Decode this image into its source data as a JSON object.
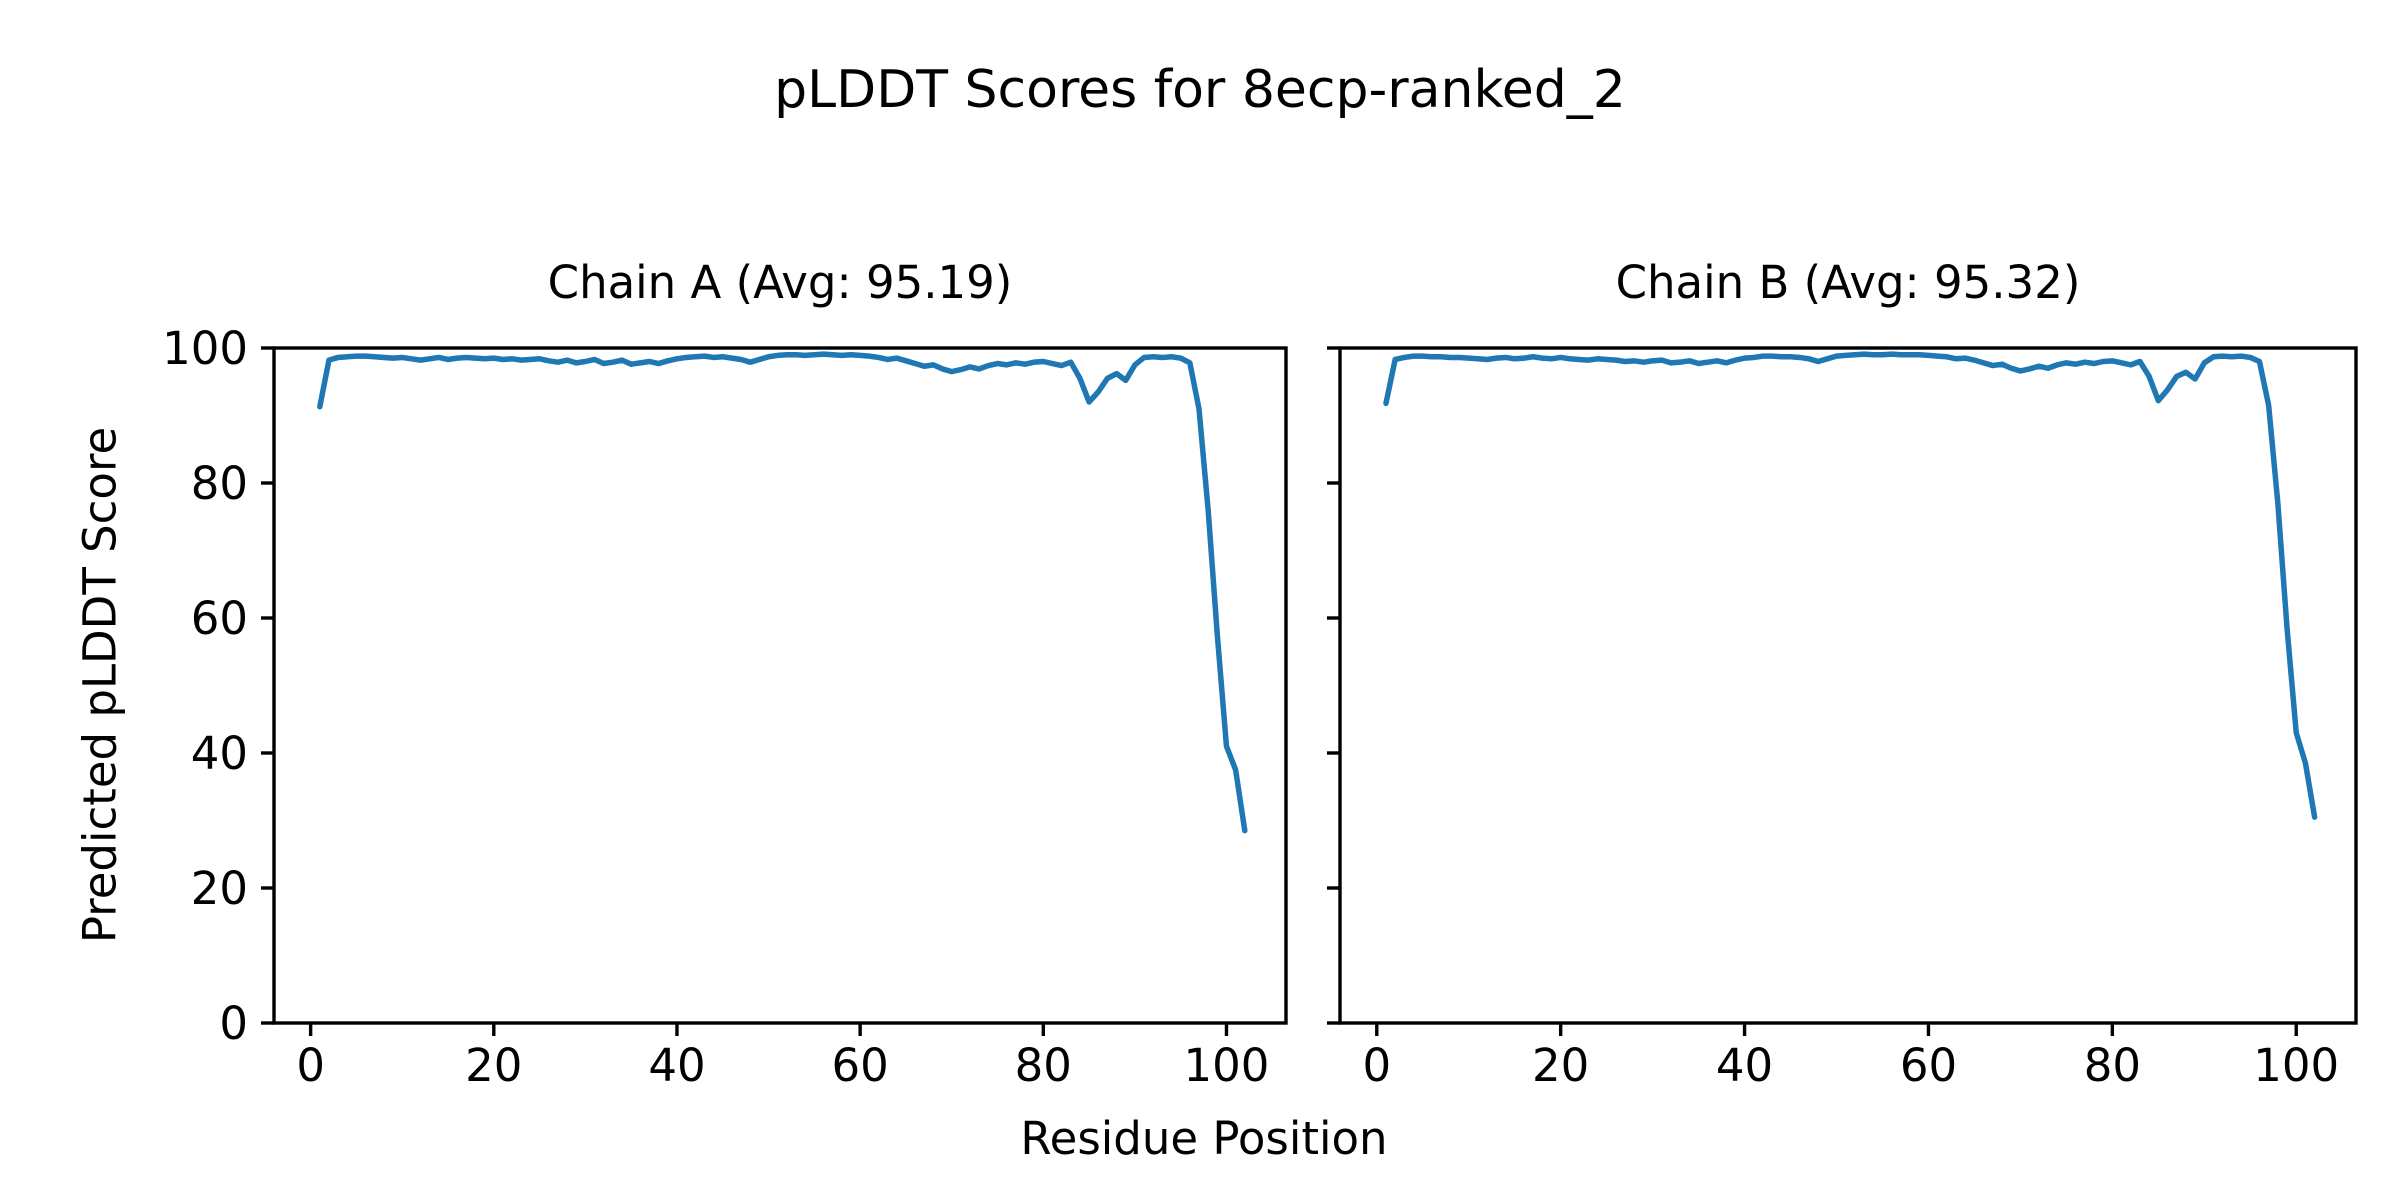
{
  "figure": {
    "suptitle": "pLDDT Scores for 8ecp-ranked_2",
    "xlabel": "Residue Position",
    "ylabel": "Predicted pLDDT Score",
    "background_color": "#ffffff",
    "text_color": "#000000",
    "accent_line_color": "#1f77b4"
  },
  "chart_data": [
    {
      "type": "line",
      "title": "Chain A (Avg: 95.19)",
      "series_name": "Chain A pLDDT per residue",
      "xlabel": "Residue Position",
      "ylabel": "Predicted pLDDT Score",
      "x_start": 1,
      "x_step": 1,
      "values": [
        91.3,
        98.2,
        98.6,
        98.7,
        98.8,
        98.8,
        98.7,
        98.6,
        98.5,
        98.6,
        98.4,
        98.2,
        98.4,
        98.6,
        98.3,
        98.5,
        98.6,
        98.5,
        98.4,
        98.5,
        98.3,
        98.4,
        98.2,
        98.3,
        98.4,
        98.1,
        97.9,
        98.2,
        97.8,
        98.0,
        98.3,
        97.7,
        97.9,
        98.2,
        97.6,
        97.8,
        98.0,
        97.7,
        98.1,
        98.4,
        98.6,
        98.7,
        98.8,
        98.6,
        98.7,
        98.5,
        98.3,
        97.9,
        98.3,
        98.7,
        98.9,
        99.0,
        99.0,
        98.9,
        99.0,
        99.1,
        99.0,
        98.9,
        99.0,
        98.9,
        98.8,
        98.6,
        98.3,
        98.5,
        98.1,
        97.7,
        97.3,
        97.5,
        96.9,
        96.5,
        96.8,
        97.2,
        96.9,
        97.4,
        97.7,
        97.5,
        97.8,
        97.6,
        97.9,
        98.0,
        97.7,
        97.4,
        97.9,
        95.5,
        92.0,
        93.5,
        95.5,
        96.2,
        95.2,
        97.5,
        98.6,
        98.7,
        98.6,
        98.7,
        98.5,
        97.8,
        91.0,
        76.0,
        57.5,
        41.0,
        37.5,
        28.5
      ],
      "xlim": [
        -4,
        106.5
      ],
      "ylim": [
        0,
        100
      ],
      "xticks": [
        0,
        20,
        40,
        60,
        80,
        100
      ],
      "yticks": [
        0,
        20,
        40,
        60,
        80,
        100
      ],
      "ytick_labels_visible": true,
      "grid": false,
      "legend": "none",
      "line_color": "#1f77b4"
    },
    {
      "type": "line",
      "title": "Chain B (Avg: 95.32)",
      "series_name": "Chain B pLDDT per residue",
      "xlabel": "Residue Position",
      "ylabel": "Predicted pLDDT Score",
      "x_start": 1,
      "x_step": 1,
      "values": [
        91.8,
        98.3,
        98.6,
        98.8,
        98.8,
        98.7,
        98.7,
        98.6,
        98.6,
        98.5,
        98.4,
        98.3,
        98.5,
        98.6,
        98.4,
        98.5,
        98.7,
        98.5,
        98.4,
        98.6,
        98.4,
        98.3,
        98.2,
        98.4,
        98.3,
        98.2,
        98.0,
        98.1,
        97.9,
        98.1,
        98.2,
        97.8,
        97.9,
        98.1,
        97.7,
        97.9,
        98.1,
        97.8,
        98.2,
        98.5,
        98.6,
        98.8,
        98.8,
        98.7,
        98.7,
        98.6,
        98.4,
        98.0,
        98.4,
        98.8,
        98.9,
        99.0,
        99.1,
        99.0,
        99.0,
        99.1,
        99.0,
        99.0,
        99.0,
        98.9,
        98.8,
        98.7,
        98.4,
        98.5,
        98.2,
        97.8,
        97.4,
        97.6,
        97.0,
        96.6,
        96.9,
        97.3,
        97.0,
        97.5,
        97.8,
        97.6,
        97.9,
        97.7,
        98.0,
        98.1,
        97.8,
        97.5,
        98.0,
        95.8,
        92.2,
        93.8,
        95.8,
        96.4,
        95.4,
        97.8,
        98.7,
        98.8,
        98.7,
        98.8,
        98.6,
        98.0,
        91.5,
        77.0,
        58.5,
        43.0,
        38.5,
        30.5
      ],
      "xlim": [
        -4,
        106.5
      ],
      "ylim": [
        0,
        100
      ],
      "xticks": [
        0,
        20,
        40,
        60,
        80,
        100
      ],
      "yticks": [
        0,
        20,
        40,
        60,
        80,
        100
      ],
      "ytick_labels_visible": false,
      "grid": false,
      "legend": "none",
      "line_color": "#1f77b4"
    }
  ]
}
